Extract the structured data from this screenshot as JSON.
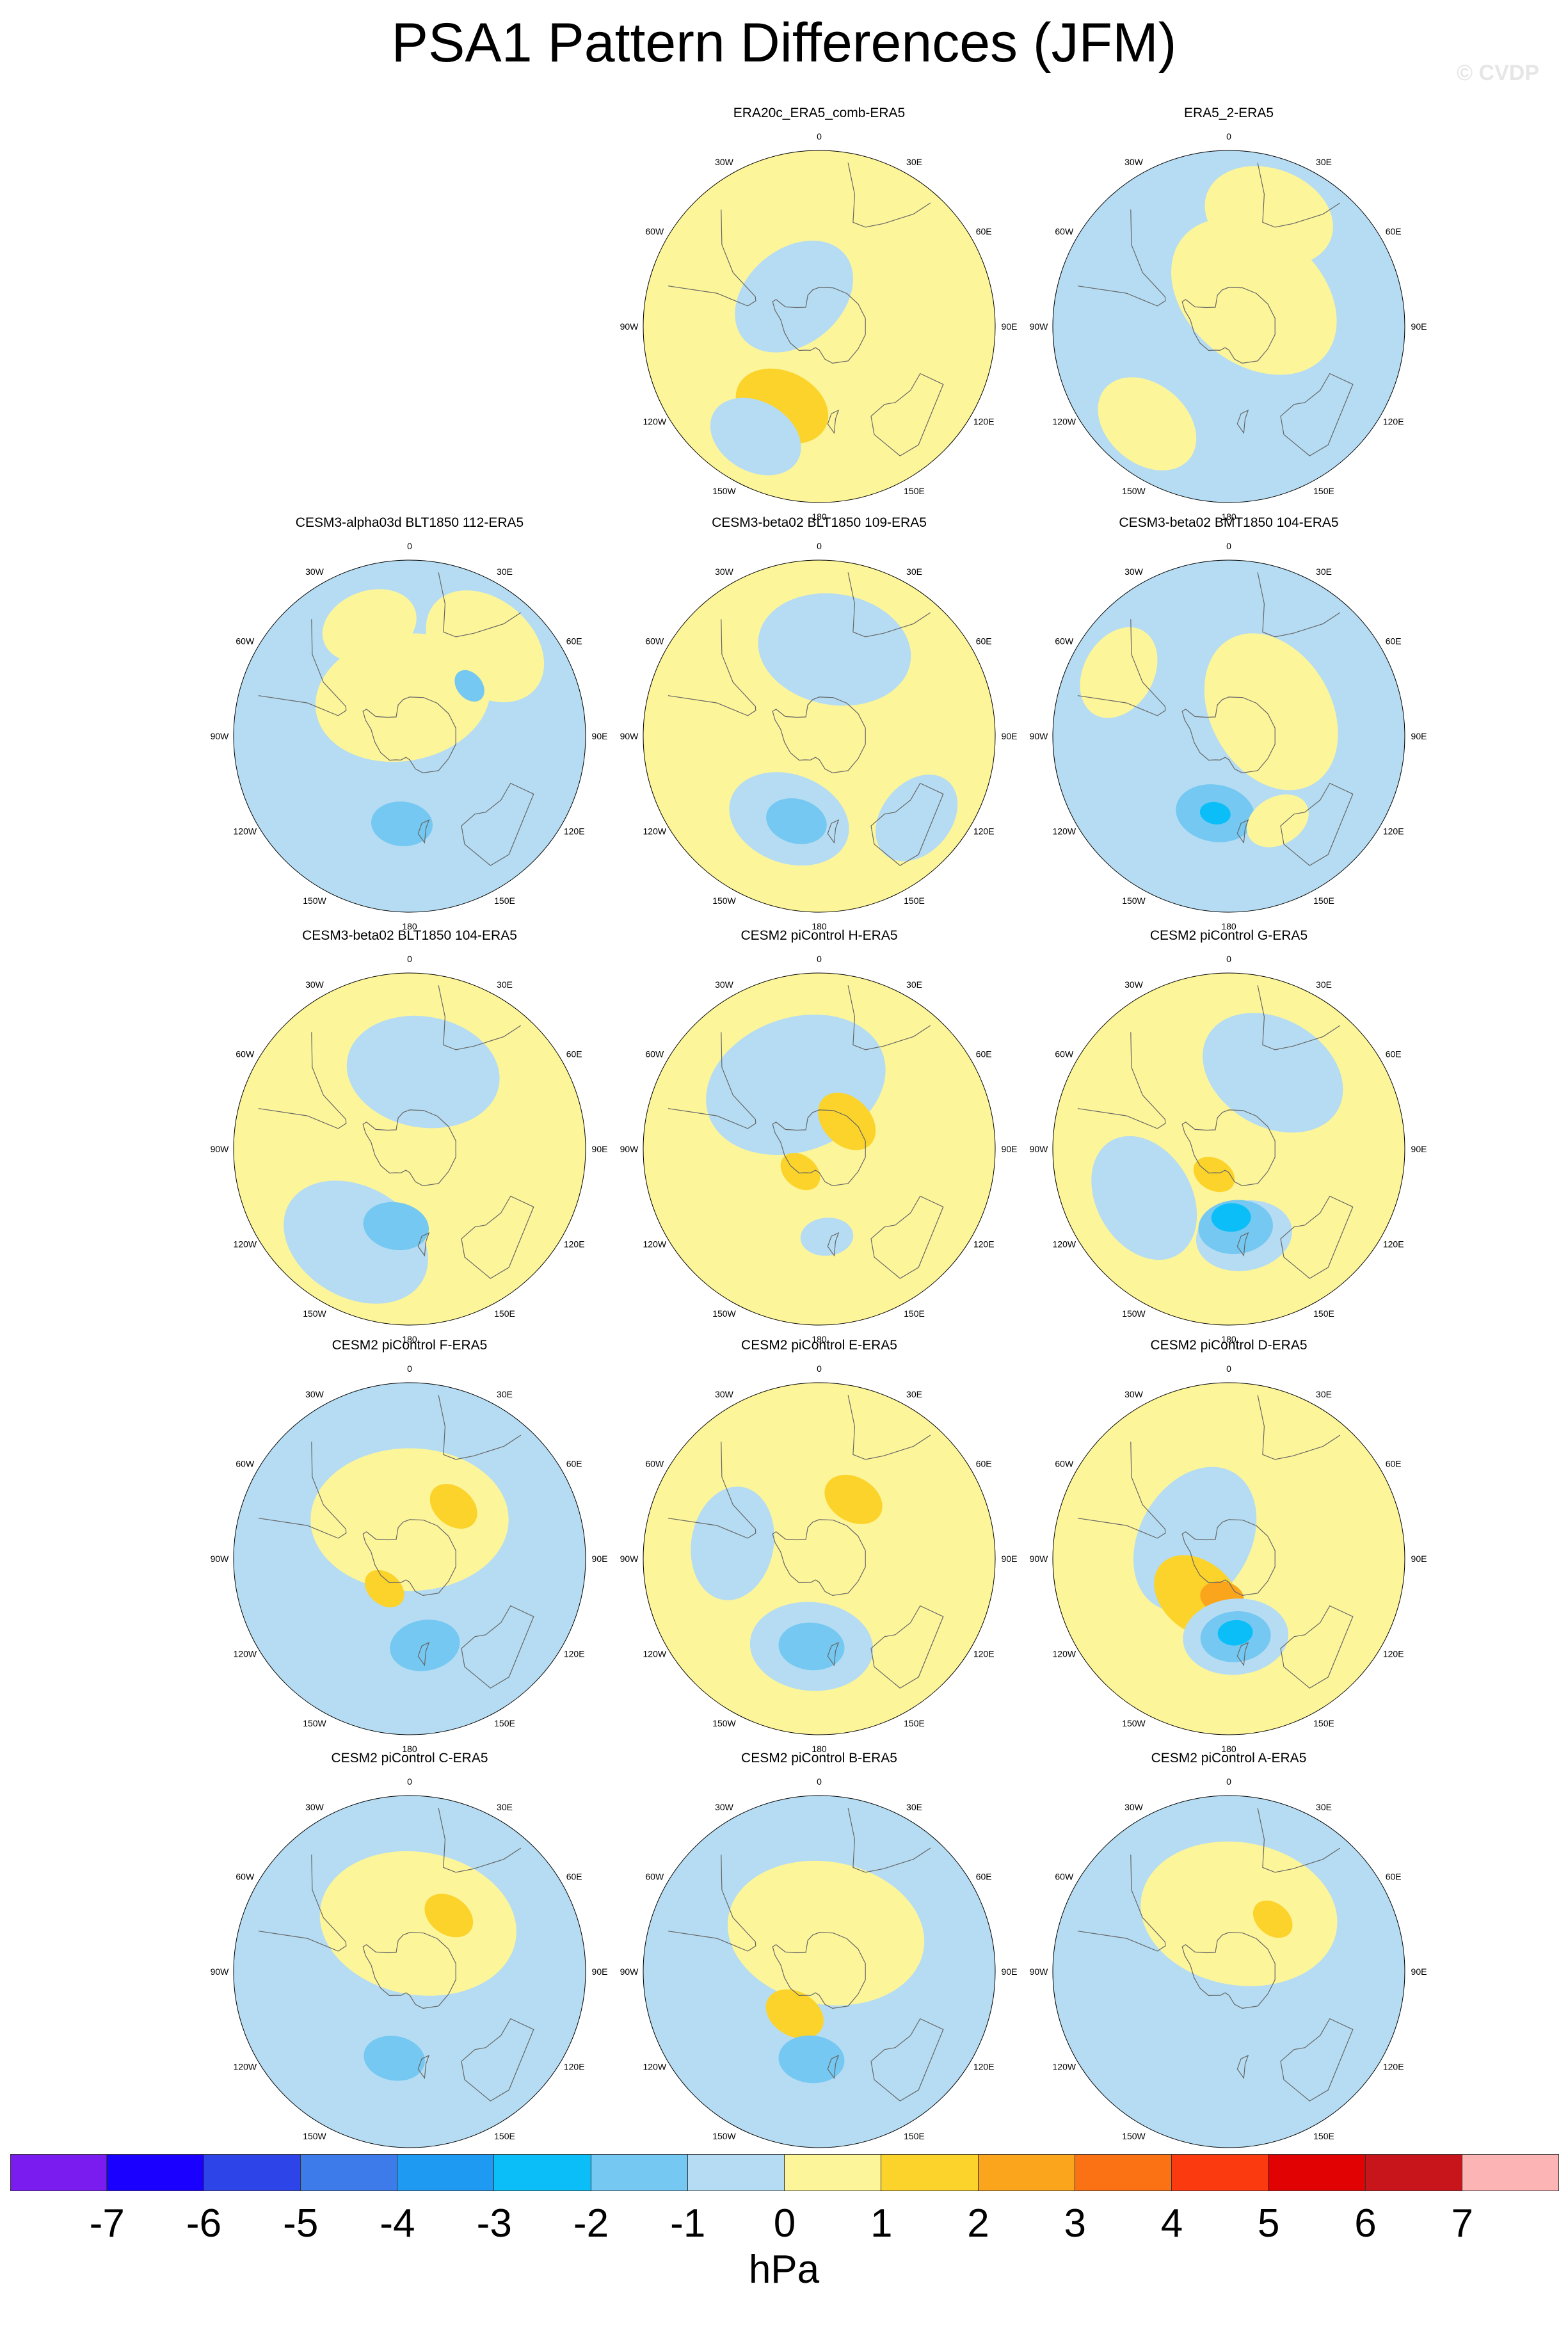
{
  "title": "PSA1 Pattern Differences (JFM)",
  "watermark": "© CVDP",
  "longitude_labels": [
    "0",
    "30E",
    "60E",
    "90E",
    "120E",
    "150E",
    "180",
    "150W",
    "120W",
    "90W",
    "60W",
    "30W"
  ],
  "colors": {
    "background_pos": "#fdf59a",
    "background_neg": "#b5dcf2"
  },
  "panels": [
    {
      "title": "ERA20c_ERA5_comb-ERA5",
      "base": "pos",
      "blobs": [
        {
          "lat": -70,
          "lon": -40,
          "r": 0.3,
          "level": -1
        },
        {
          "lat": -45,
          "lon": -155,
          "r": 0.22,
          "level": 1
        },
        {
          "lat": -25,
          "lon": -150,
          "r": 0.22,
          "level": -1
        }
      ]
    },
    {
      "title": "ERA5_2-ERA5",
      "base": "neg",
      "blobs": [
        {
          "lat": -70,
          "lon": 40,
          "r": 0.42,
          "level": 0
        },
        {
          "lat": -30,
          "lon": 20,
          "r": 0.3,
          "level": 0
        },
        {
          "lat": -25,
          "lon": -140,
          "r": 0.25,
          "level": 0
        }
      ]
    },
    {
      "title": "CESM3-alpha03d BLT1850 112-ERA5",
      "base": "neg",
      "blobs": [
        {
          "lat": -70,
          "lon": -10,
          "r": 0.4,
          "level": 0
        },
        {
          "lat": -30,
          "lon": 40,
          "r": 0.3,
          "level": 0
        },
        {
          "lat": -30,
          "lon": -20,
          "r": 0.22,
          "level": 0
        },
        {
          "lat": -45,
          "lon": -175,
          "r": 0.14,
          "level": -2
        },
        {
          "lat": -50,
          "lon": 50,
          "r": 0.08,
          "level": -2
        }
      ]
    },
    {
      "title": "CESM3-beta02 BLT1850 109-ERA5",
      "base": "pos",
      "blobs": [
        {
          "lat": -45,
          "lon": 10,
          "r": 0.35,
          "level": -1
        },
        {
          "lat": -45,
          "lon": -160,
          "r": 0.28,
          "level": -1
        },
        {
          "lat": -45,
          "lon": -165,
          "r": 0.14,
          "level": -2
        },
        {
          "lat": -25,
          "lon": 130,
          "r": 0.22,
          "level": -1
        }
      ]
    },
    {
      "title": "CESM3-beta02 BMT1850 104-ERA5",
      "base": "neg",
      "blobs": [
        {
          "lat": -65,
          "lon": 60,
          "r": 0.38,
          "level": 0
        },
        {
          "lat": -25,
          "lon": -60,
          "r": 0.22,
          "level": 0
        },
        {
          "lat": -50,
          "lon": -170,
          "r": 0.18,
          "level": -2
        },
        {
          "lat": -50,
          "lon": -170,
          "r": 0.07,
          "level": -3
        },
        {
          "lat": -40,
          "lon": 150,
          "r": 0.15,
          "level": 0
        }
      ]
    },
    {
      "title": "CESM3-beta02 BLT1850 104-ERA5",
      "base": "pos",
      "blobs": [
        {
          "lat": -50,
          "lon": 10,
          "r": 0.35,
          "level": -1
        },
        {
          "lat": -35,
          "lon": -150,
          "r": 0.35,
          "level": -1
        },
        {
          "lat": -50,
          "lon": -170,
          "r": 0.15,
          "level": -2
        }
      ]
    },
    {
      "title": "CESM2 piControl H-ERA5",
      "base": "pos",
      "blobs": [
        {
          "lat": -55,
          "lon": -20,
          "r": 0.42,
          "level": -1
        },
        {
          "lat": -70,
          "lon": 45,
          "r": 0.15,
          "level": 1
        },
        {
          "lat": -75,
          "lon": -140,
          "r": 0.1,
          "level": 1
        },
        {
          "lat": -45,
          "lon": 175,
          "r": 0.12,
          "level": -1
        }
      ]
    },
    {
      "title": "CESM2 piControl G-ERA5",
      "base": "pos",
      "blobs": [
        {
          "lat": -45,
          "lon": 30,
          "r": 0.34,
          "level": -1
        },
        {
          "lat": -40,
          "lon": -120,
          "r": 0.3,
          "level": -1
        },
        {
          "lat": -45,
          "lon": 170,
          "r": 0.22,
          "level": -1
        },
        {
          "lat": -50,
          "lon": 175,
          "r": 0.17,
          "level": -2
        },
        {
          "lat": -55,
          "lon": 178,
          "r": 0.09,
          "level": -3
        },
        {
          "lat": -75,
          "lon": -150,
          "r": 0.1,
          "level": 1
        }
      ]
    },
    {
      "title": "CESM2 piControl F-ERA5",
      "base": "neg",
      "blobs": [
        {
          "lat": -70,
          "lon": 0,
          "r": 0.45,
          "level": 0
        },
        {
          "lat": -55,
          "lon": 40,
          "r": 0.12,
          "level": 1
        },
        {
          "lat": -70,
          "lon": -140,
          "r": 0.1,
          "level": 1
        },
        {
          "lat": -45,
          "lon": 170,
          "r": 0.16,
          "level": -2
        }
      ]
    },
    {
      "title": "CESM2 piControl E-ERA5",
      "base": "pos",
      "blobs": [
        {
          "lat": -45,
          "lon": -80,
          "r": 0.26,
          "level": -1
        },
        {
          "lat": -45,
          "lon": -175,
          "r": 0.28,
          "level": -1
        },
        {
          "lat": -45,
          "lon": -175,
          "r": 0.15,
          "level": -2
        },
        {
          "lat": -55,
          "lon": 30,
          "r": 0.14,
          "level": 1
        }
      ]
    },
    {
      "title": "CESM2 piControl D-ERA5",
      "base": "pos",
      "blobs": [
        {
          "lat": -70,
          "lon": -60,
          "r": 0.35,
          "level": -1
        },
        {
          "lat": -65,
          "lon": -140,
          "r": 0.22,
          "level": 1
        },
        {
          "lat": -70,
          "lon": -170,
          "r": 0.1,
          "level": 2
        },
        {
          "lat": -50,
          "lon": 175,
          "r": 0.24,
          "level": -1
        },
        {
          "lat": -50,
          "lon": 175,
          "r": 0.16,
          "level": -2
        },
        {
          "lat": -52,
          "lon": 175,
          "r": 0.08,
          "level": -3
        }
      ]
    },
    {
      "title": "CESM2 piControl C-ERA5",
      "base": "neg",
      "blobs": [
        {
          "lat": -65,
          "lon": 10,
          "r": 0.45,
          "level": 0
        },
        {
          "lat": -55,
          "lon": 35,
          "r": 0.12,
          "level": 1
        },
        {
          "lat": -45,
          "lon": -170,
          "r": 0.14,
          "level": -2
        }
      ]
    },
    {
      "title": "CESM2 piControl B-ERA5",
      "base": "neg",
      "blobs": [
        {
          "lat": -70,
          "lon": 10,
          "r": 0.45,
          "level": 0
        },
        {
          "lat": -65,
          "lon": -150,
          "r": 0.14,
          "level": 1
        },
        {
          "lat": -45,
          "lon": -175,
          "r": 0.15,
          "level": -2
        }
      ]
    },
    {
      "title": "CESM2 piControl A-ERA5",
      "base": "neg",
      "blobs": [
        {
          "lat": -60,
          "lon": 10,
          "r": 0.45,
          "level": 0
        },
        {
          "lat": -55,
          "lon": 40,
          "r": 0.1,
          "level": 1
        }
      ]
    }
  ],
  "colorbar": {
    "unit": "hPa",
    "labels": [
      "-7",
      "-6",
      "-5",
      "-4",
      "-3",
      "-2",
      "-1",
      "0",
      "1",
      "2",
      "3",
      "4",
      "5",
      "6",
      "7"
    ],
    "colors": [
      "#7a1cf0",
      "#1a00ff",
      "#2d45e8",
      "#3c7be9",
      "#1f9af2",
      "#0cbef8",
      "#74c8f1",
      "#b5dcf2",
      "#fdf59a",
      "#fbd32b",
      "#fba51c",
      "#fb7214",
      "#fb3a0f",
      "#e10204",
      "#c8151c",
      "#fdb4b4"
    ]
  }
}
